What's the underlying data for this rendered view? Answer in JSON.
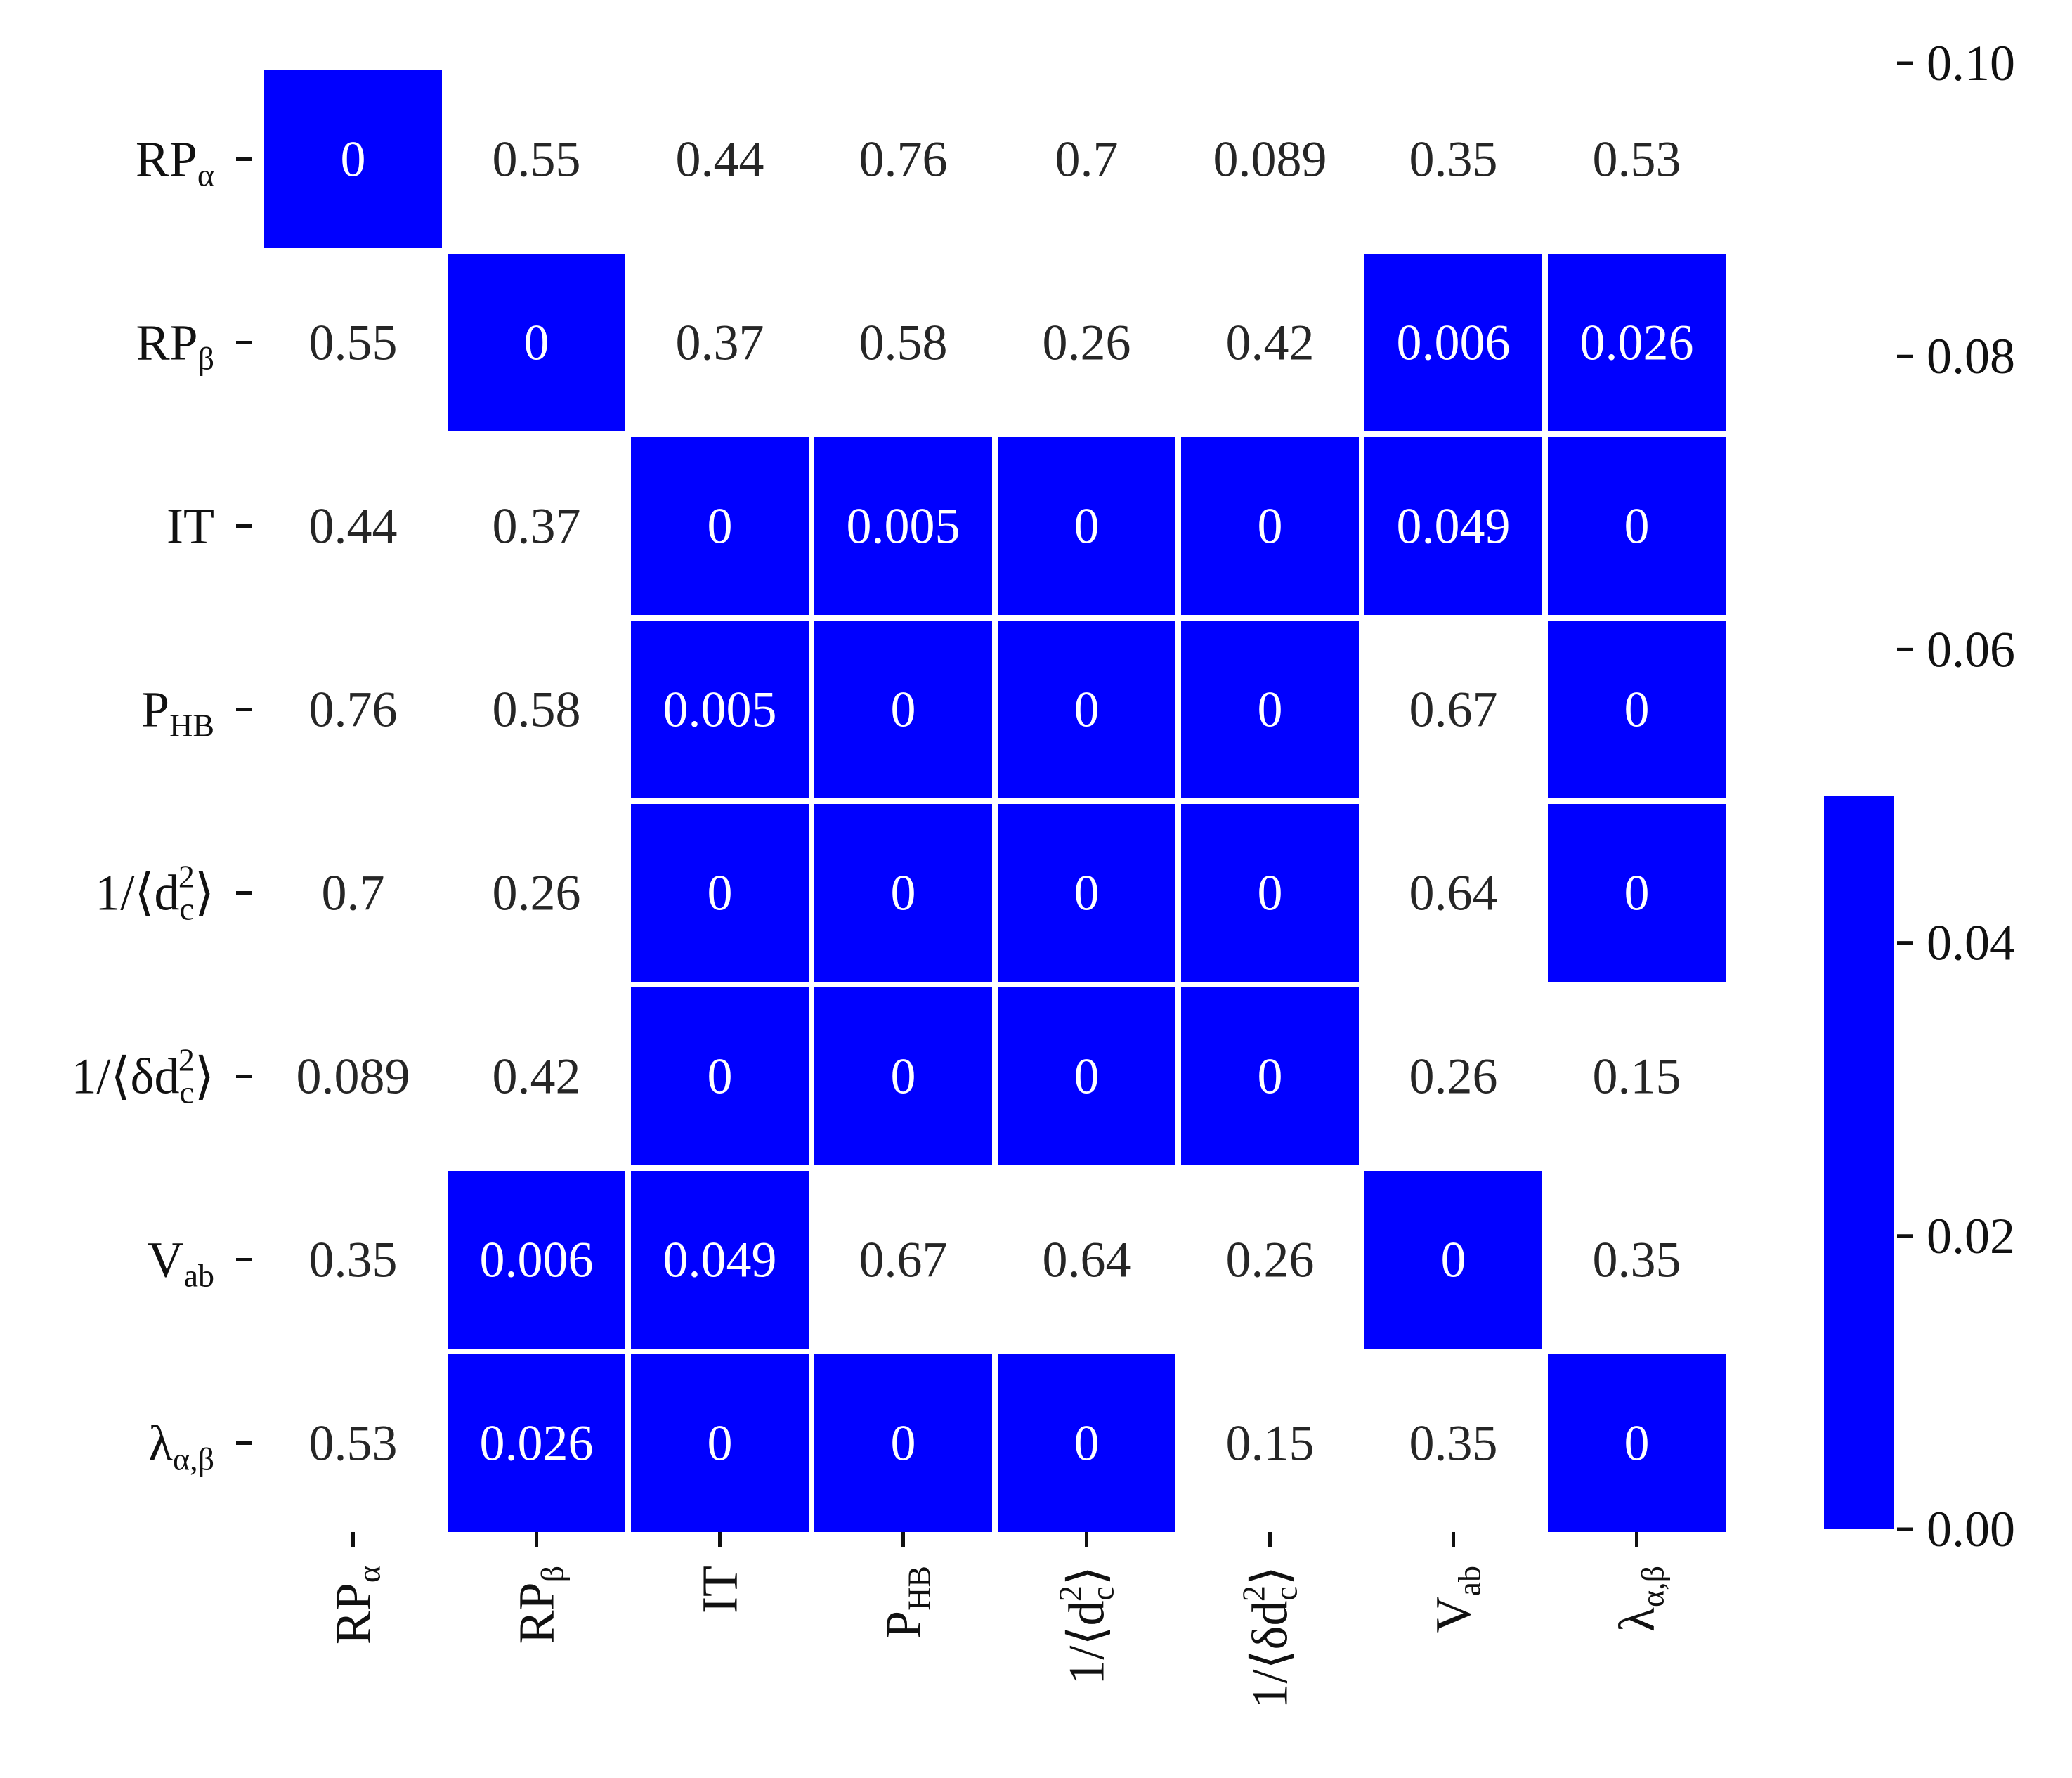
{
  "chart_data": {
    "type": "heatmap",
    "title": "",
    "rows": [
      "RP_α",
      "RP_β",
      "IT",
      "P_HB",
      "1/⟨d_c^2⟩",
      "1/⟨δd_c^2⟩",
      "V_ab",
      "λ_α,β"
    ],
    "cols": [
      "RP_α",
      "RP_β",
      "IT",
      "P_HB",
      "1/⟨d_c^2⟩",
      "1/⟨δd_c^2⟩",
      "V_ab",
      "λ_α,β"
    ],
    "values": [
      [
        "0",
        "0.55",
        "0.44",
        "0.76",
        "0.7",
        "0.089",
        "0.35",
        "0.53"
      ],
      [
        "0.55",
        "0",
        "0.37",
        "0.58",
        "0.26",
        "0.42",
        "0.006",
        "0.026"
      ],
      [
        "0.44",
        "0.37",
        "0",
        "0.005",
        "0",
        "0",
        "0.049",
        "0"
      ],
      [
        "0.76",
        "0.58",
        "0.005",
        "0",
        "0",
        "0",
        "0.67",
        "0"
      ],
      [
        "0.7",
        "0.26",
        "0",
        "0",
        "0",
        "0",
        "0.64",
        "0"
      ],
      [
        "0.089",
        "0.42",
        "0",
        "0",
        "0",
        "0",
        "0.26",
        "0.15"
      ],
      [
        "0.35",
        "0.006",
        "0.049",
        "0.67",
        "0.64",
        "0.26",
        "0",
        "0.35"
      ],
      [
        "0.53",
        "0.026",
        "0",
        "0",
        "0",
        "0.15",
        "0.35",
        "0"
      ]
    ],
    "threshold": 0.05,
    "colorbar": {
      "ticks": [
        "0.00",
        "0.02",
        "0.04",
        "0.06",
        "0.08",
        "0.10"
      ],
      "range": [
        0,
        0.1
      ],
      "filled_to": 0.05
    },
    "colors": {
      "significant": "#0000ff",
      "background": "#ffffff",
      "text_on_fill": "#ffffff",
      "text_plain": "#262626"
    }
  }
}
